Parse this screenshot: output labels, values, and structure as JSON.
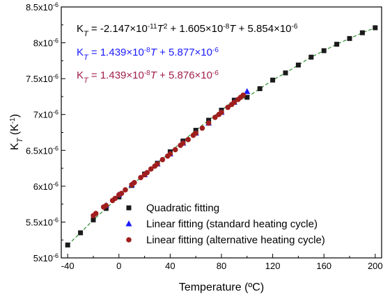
{
  "chart_data": {
    "type": "scatter",
    "xlabel": "Temperature (ºC)",
    "ylabel_main": "K",
    "ylabel_sub": "T",
    "ylabel_unit": " (K",
    "ylabel_exp": "-1",
    "ylabel_close": ")",
    "xlim": [
      -45,
      205
    ],
    "ylim": [
      5e-06,
      8.5e-06
    ],
    "x_ticks": [
      -40,
      0,
      40,
      80,
      120,
      160,
      200
    ],
    "y_ticks": [
      {
        "value": 5e-06,
        "mant": "5x10",
        "exp": "-6"
      },
      {
        "value": 5.5e-06,
        "mant": "5.5x10",
        "exp": "-6"
      },
      {
        "value": 6e-06,
        "mant": "6x10",
        "exp": "-6"
      },
      {
        "value": 6.5e-06,
        "mant": "6.5x10",
        "exp": "-6"
      },
      {
        "value": 7e-06,
        "mant": "7x10",
        "exp": "-6"
      },
      {
        "value": 7.5e-06,
        "mant": "7.5x10",
        "exp": "-6"
      },
      {
        "value": 8e-06,
        "mant": "8x10",
        "exp": "-6"
      },
      {
        "value": 8.5e-06,
        "mant": "8.5x10",
        "exp": "-6"
      }
    ],
    "equations": [
      {
        "color": "#000000",
        "parts": [
          [
            "K",
            "n"
          ],
          [
            "T",
            "sub"
          ],
          [
            " = -2.147×10",
            "n"
          ],
          [
            "-11",
            "sup"
          ],
          [
            "T",
            "i"
          ],
          [
            "2",
            "sup"
          ],
          [
            " + 1.605×10",
            "n"
          ],
          [
            "-8",
            "sup"
          ],
          [
            "T",
            "i"
          ],
          [
            " + 5.854×10",
            "n"
          ],
          [
            "-6",
            "sup"
          ]
        ]
      },
      {
        "color": "#1a1aff",
        "parts": [
          [
            "K",
            "n"
          ],
          [
            "T",
            "sub"
          ],
          [
            " = 1.439×10",
            "n"
          ],
          [
            "-8",
            "sup"
          ],
          [
            "T",
            "i"
          ],
          [
            " + 5.877×10",
            "n"
          ],
          [
            "-6",
            "sup"
          ]
        ]
      },
      {
        "color": "#a01e4a",
        "parts": [
          [
            "K",
            "n"
          ],
          [
            "T",
            "sub"
          ],
          [
            " = 1.439×10",
            "n"
          ],
          [
            "-8",
            "sup"
          ],
          [
            "T",
            "i"
          ],
          [
            " + 5.876×10",
            "n"
          ],
          [
            "-6",
            "sup"
          ]
        ]
      }
    ],
    "fit_line": {
      "color": "#2e8b2e",
      "dash": true,
      "x_range": [
        -40,
        200
      ]
    },
    "series": [
      {
        "name": "Quadratic fitting",
        "marker": "square",
        "color": "#1a1a1a",
        "x": [
          -40,
          -30,
          -20,
          -10,
          0,
          10,
          20,
          30,
          40,
          50,
          60,
          70,
          80,
          90,
          100,
          110,
          120,
          130,
          140,
          150,
          160,
          170,
          180,
          190,
          200
        ],
        "y": [
          5.18e-06,
          5.35e-06,
          5.53e-06,
          5.69e-06,
          5.85e-06,
          6.01e-06,
          6.17e-06,
          6.32e-06,
          6.48e-06,
          6.63e-06,
          6.78e-06,
          6.92e-06,
          7.06e-06,
          7.2e-06,
          7.24e-06,
          7.36e-06,
          7.48e-06,
          7.58e-06,
          7.69e-06,
          7.8e-06,
          7.89e-06,
          7.98e-06,
          8.06e-06,
          8.14e-06,
          8.21e-06
        ]
      },
      {
        "name": "Linear fitting (standard heating cycle)",
        "marker": "triangle",
        "color": "#1a1aff",
        "x": [
          -10,
          0,
          10,
          20,
          30,
          40,
          50,
          60,
          70,
          80,
          90,
          100
        ],
        "y": [
          5.73e-06,
          5.88e-06,
          6.02e-06,
          6.16e-06,
          6.31e-06,
          6.45e-06,
          6.6e-06,
          6.74e-06,
          6.88e-06,
          7.03e-06,
          7.17e-06,
          7.32e-06
        ]
      },
      {
        "name": "Linear fitting (alternative heating cycle)",
        "marker": "circle",
        "color": "#a01e1e",
        "x": [
          -20,
          -18,
          -12,
          -10,
          -5,
          -3,
          0,
          2,
          5,
          10,
          12,
          17,
          20,
          22,
          25,
          28,
          30,
          34,
          38,
          40,
          44,
          48,
          50,
          54,
          58,
          60,
          65,
          70,
          75,
          78,
          80,
          85,
          88,
          90,
          93,
          95,
          97
        ],
        "y": [
          5.59e-06,
          5.62e-06,
          5.71e-06,
          5.73e-06,
          5.8e-06,
          5.83e-06,
          5.88e-06,
          5.9e-06,
          5.95e-06,
          6.02e-06,
          6.05e-06,
          6.12e-06,
          6.16e-06,
          6.19e-06,
          6.24e-06,
          6.28e-06,
          6.31e-06,
          6.37e-06,
          6.42e-06,
          6.45e-06,
          6.51e-06,
          6.57e-06,
          6.6e-06,
          6.65e-06,
          6.71e-06,
          6.74e-06,
          6.81e-06,
          6.88e-06,
          6.96e-06,
          7e-06,
          7.03e-06,
          7.1e-06,
          7.14e-06,
          7.17e-06,
          7.21e-06,
          7.24e-06,
          7.27e-06
        ]
      }
    ]
  }
}
